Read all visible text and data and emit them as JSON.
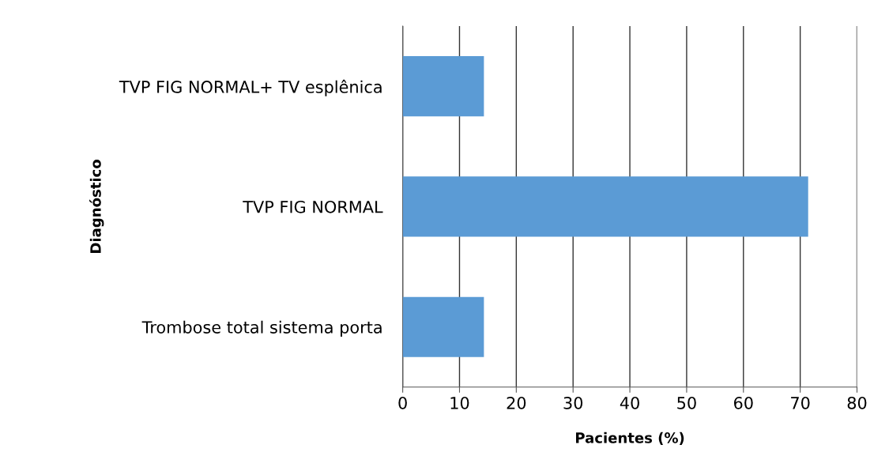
{
  "chart_data": {
    "type": "bar",
    "orientation": "horizontal",
    "xlabel": "Pacientes (%)",
    "ylabel": "Diagnóstico",
    "categories": [
      "TVP FIG NORMAL+ TV esplênica",
      "TVP FIG NORMAL",
      "Trombose total sistema porta"
    ],
    "values": [
      14.3,
      71.4,
      14.3
    ],
    "color": "#5b9bd5",
    "xlim": [
      0,
      80
    ],
    "xticks": [
      0,
      10,
      20,
      30,
      40,
      50,
      60,
      70,
      80
    ],
    "grid": "x"
  }
}
